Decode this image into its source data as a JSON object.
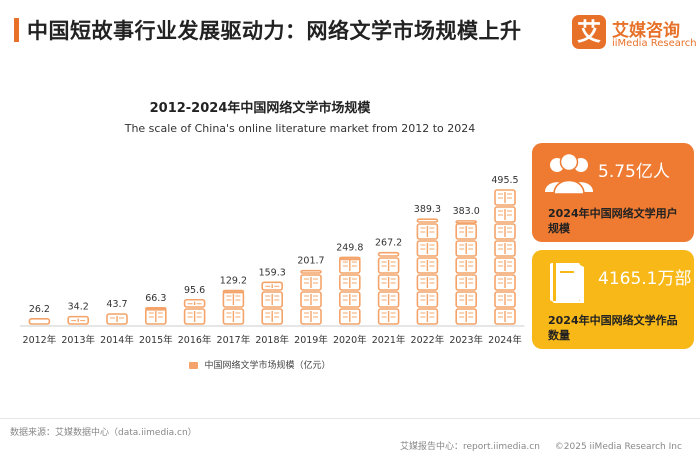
{
  "header": {
    "title": "中国短故事行业发展驱动力：网络文学市场规模上升",
    "logo_mark": "艾",
    "logo_cn": "艾媒咨询",
    "logo_en": "iiMedia Research",
    "accent_color": "#e8712a"
  },
  "chart_data": {
    "type": "bar",
    "title": "2012-2024年中国网络文学市场规模",
    "subtitle": "The scale of China's online literature market from 2012 to 2024",
    "categories": [
      "2012年",
      "2013年",
      "2014年",
      "2015年",
      "2016年",
      "2017年",
      "2018年",
      "2019年",
      "2020年",
      "2021年",
      "2022年",
      "2023年",
      "2024年"
    ],
    "series": [
      {
        "name": "中国网络文学市场规模（亿元）",
        "values": [
          26.2,
          34.2,
          43.7,
          66.3,
          95.6,
          129.2,
          159.3,
          201.7,
          249.8,
          267.2,
          389.3,
          383.0,
          495.5
        ],
        "labels": [
          "26.2",
          "34.2",
          "43.7",
          "66.3",
          "95.6",
          "129.2",
          "159.3",
          "201.7",
          "249.8",
          "267.2",
          "389.3",
          "383.0",
          "495.5"
        ],
        "color": "#f4a46a"
      }
    ],
    "mark_icon": "book-icon",
    "legend_position": "bottom",
    "grid": false
  },
  "cards": [
    {
      "icon": "users-icon",
      "value": "5.75亿人",
      "label": "2024年中国网络文学用户规模",
      "color": "#ef7a31"
    },
    {
      "icon": "book-icon",
      "value": "4165.1万部",
      "label": "2024年中国网络文学作品数量",
      "color": "#f7b818"
    }
  ],
  "footer": {
    "source": "数据来源：艾媒数据中心（data.iimedia.cn）",
    "report_center": "艾媒报告中心：report.iimedia.cn",
    "copyright": "©2025 iiMedia Research Inc"
  }
}
